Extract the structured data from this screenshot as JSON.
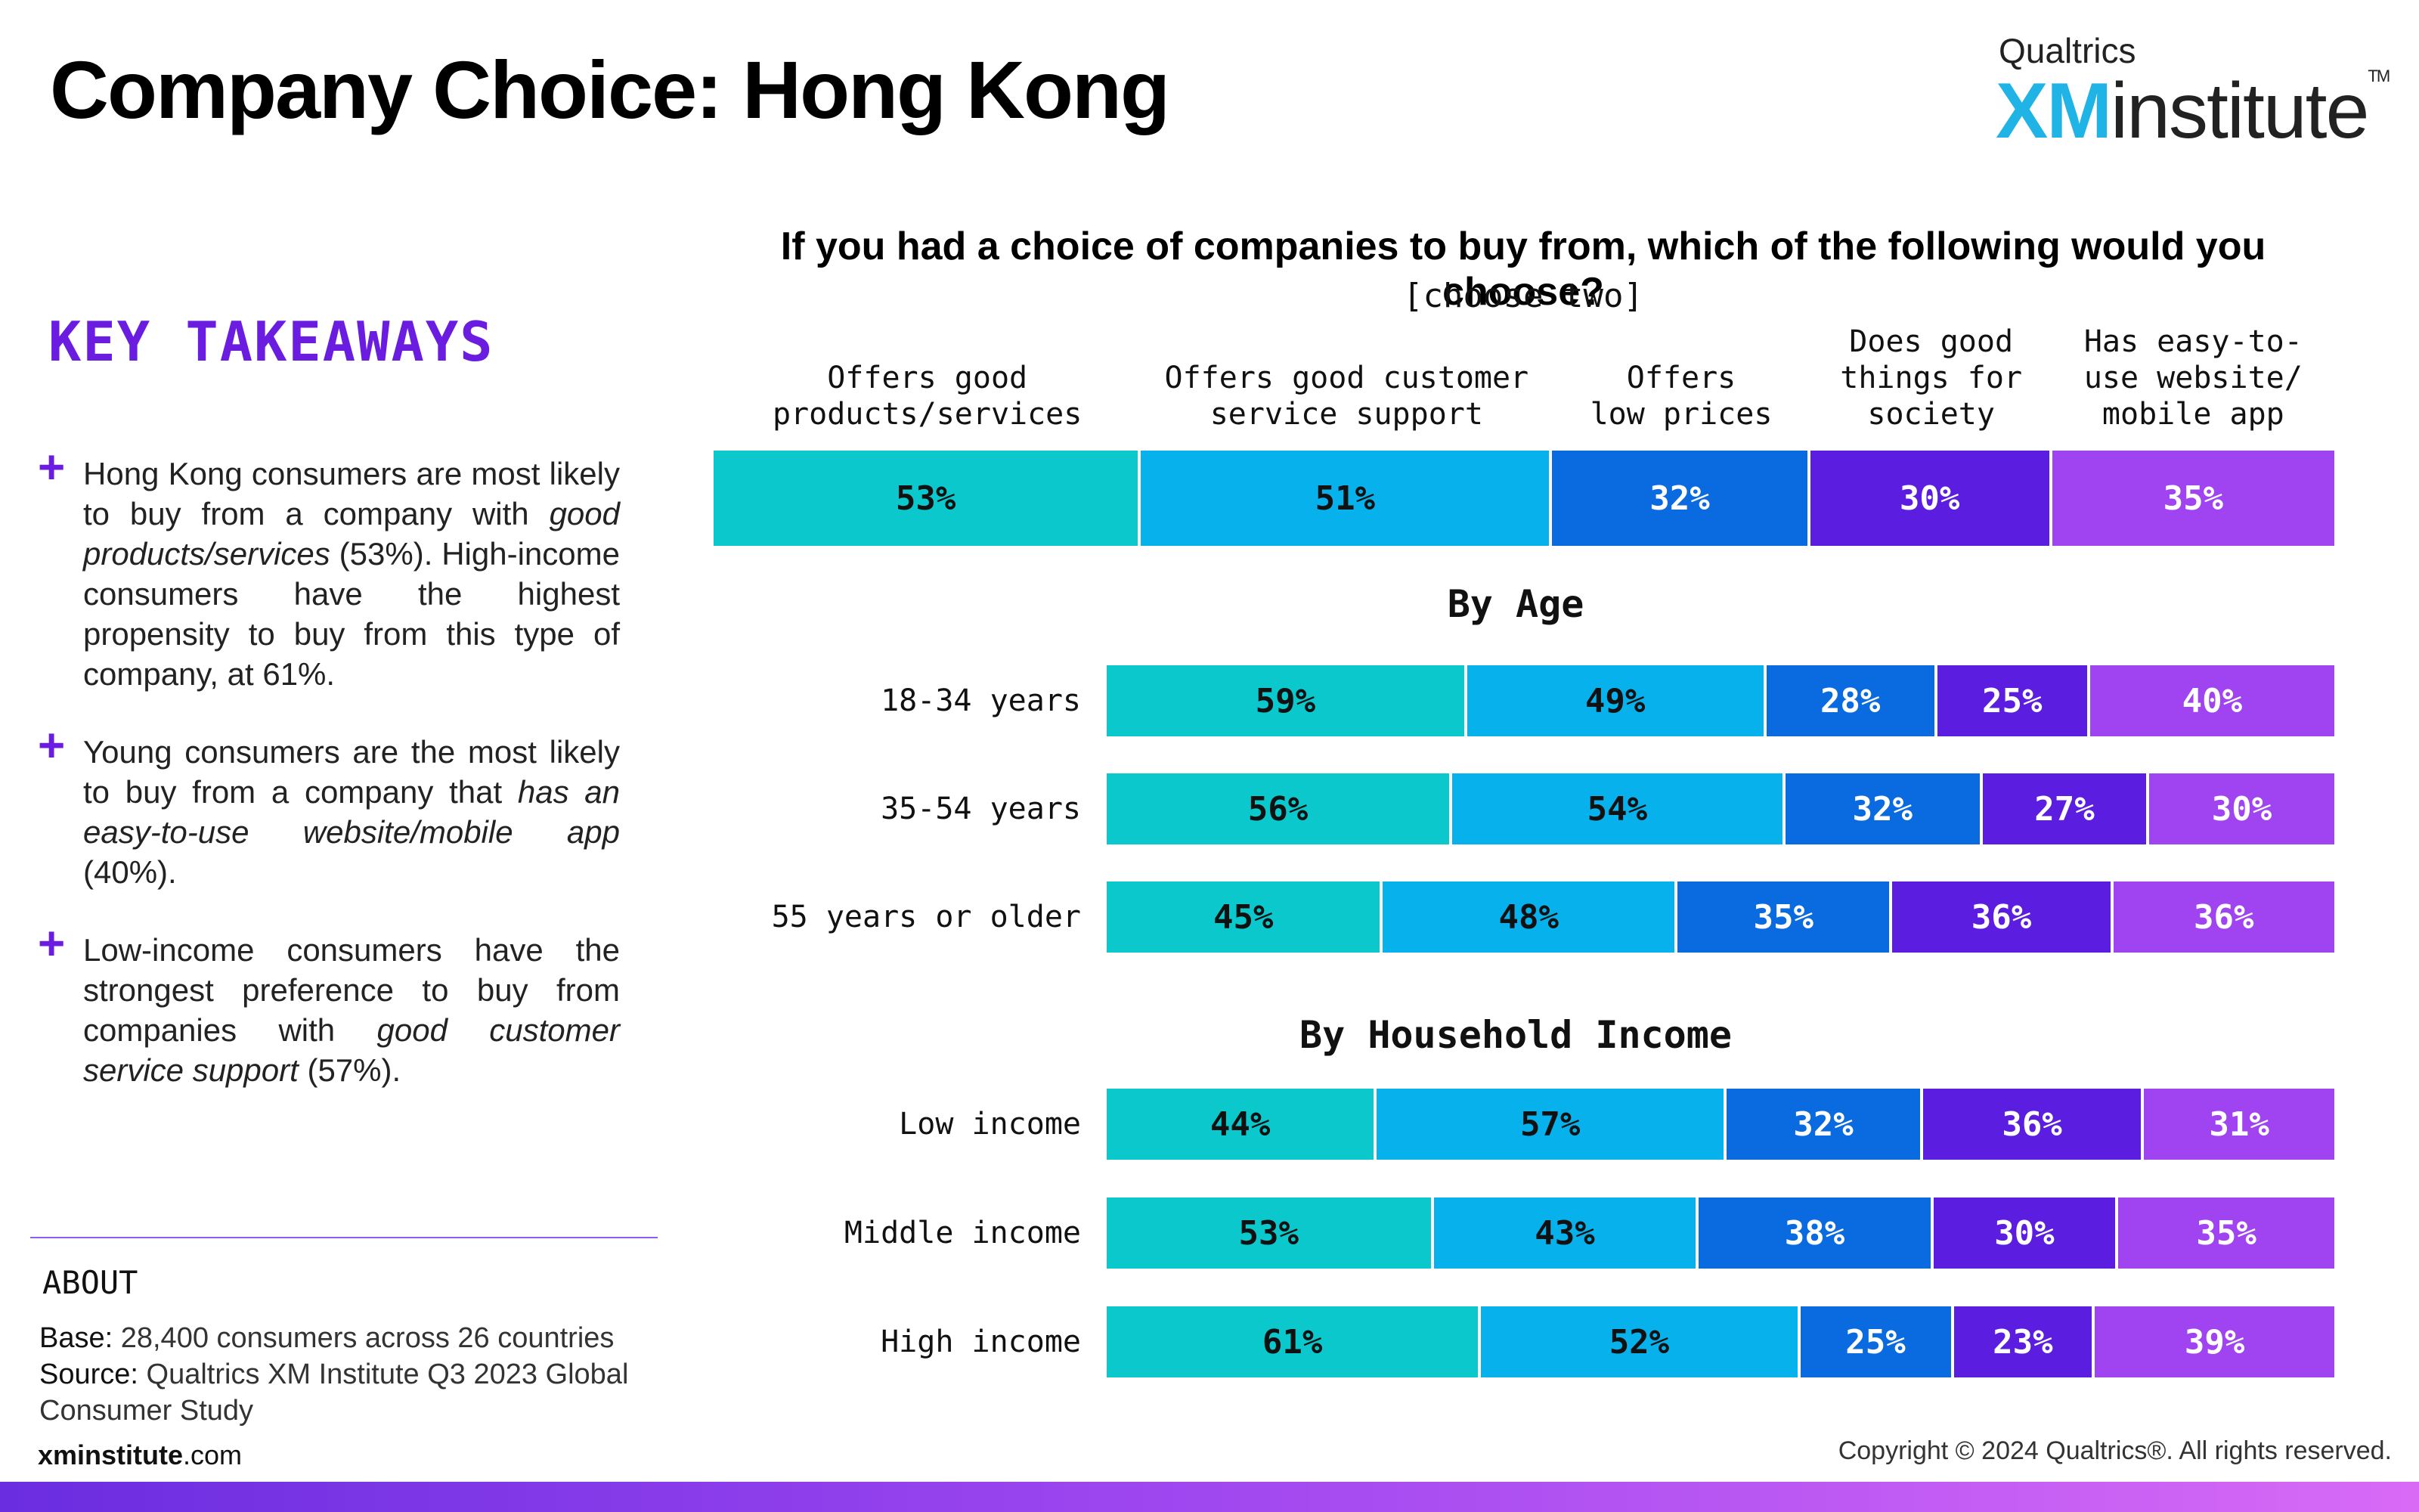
{
  "page": {
    "title": "Company Choice: Hong Kong",
    "logo": {
      "top": "Qualtrics",
      "xm": "XM",
      "rest": "institute",
      "tm": "TM"
    },
    "key_takeaways_title": "KEY TAKEAWAYS",
    "takeaways": [
      [
        "Hong Kong consumers are most likely to buy from a company with ",
        "good products/services",
        " (53%). High-income consumers have the highest propensity to buy from this type of company, at 61%."
      ],
      [
        "Young consumers are the most likely to buy from a company that ",
        "has an easy-to-use website/mobile app",
        " (40%)."
      ],
      [
        "Low-income consumers have the strongest preference to buy from companies with ",
        "good customer service support",
        " (57%)."
      ]
    ],
    "about_title": "ABOUT",
    "base_label": "Base:",
    "base_text": " 28,400 consumers across 26 countries",
    "source_label": "Source:",
    "source_text": " Qualtrics XM Institute Q3 2023 Global Consumer Study",
    "site_bold": "xminstitute",
    "site_rest": ".com",
    "copyright": "Copyright © 2024 Qualtrics®. All rights reserved."
  },
  "chart_data": {
    "type": "bar",
    "stacked": true,
    "orientation": "horizontal",
    "title": "If you had a choice of companies to buy from, which of the following would you choose?",
    "subtitle": "[choose two]",
    "categories": [
      "Offers good\nproducts/services",
      "Offers good customer\nservice support",
      "Offers\nlow prices",
      "Does good\nthings for\nsociety",
      "Has easy-to-\nuse website/\nmobile app"
    ],
    "colors": [
      "#0ac8cc",
      "#07b1ec",
      "#0a6be0",
      "#5b1de0",
      "#a043f0"
    ],
    "text_colors": [
      "#111111",
      "#111111",
      "#ffffff",
      "#ffffff",
      "#ffffff"
    ],
    "groups": [
      {
        "title": "",
        "rows": [
          {
            "label": "",
            "values": [
              53,
              51,
              32,
              30,
              35
            ]
          }
        ]
      },
      {
        "title": "By Age",
        "rows": [
          {
            "label": "18-34 years",
            "values": [
              59,
              49,
              28,
              25,
              40
            ]
          },
          {
            "label": "35-54 years",
            "values": [
              56,
              54,
              32,
              27,
              30
            ]
          },
          {
            "label": "55 years or older",
            "values": [
              45,
              48,
              35,
              36,
              36
            ]
          }
        ]
      },
      {
        "title": "By Household Income",
        "rows": [
          {
            "label": "Low income",
            "values": [
              44,
              57,
              32,
              36,
              31
            ]
          },
          {
            "label": "Middle income",
            "values": [
              53,
              43,
              38,
              30,
              35
            ]
          },
          {
            "label": "High income",
            "values": [
              61,
              52,
              25,
              23,
              39
            ]
          }
        ]
      }
    ]
  }
}
